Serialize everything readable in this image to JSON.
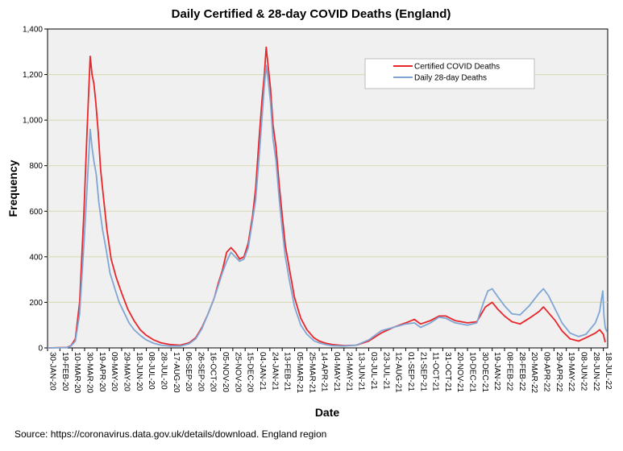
{
  "chart_data": {
    "type": "line",
    "title": "Daily Certified & 28-day COVID Deaths (England)",
    "xlabel": "Date",
    "ylabel": "Frequency",
    "source": "Source: https://coronavirus.data.gov.uk/details/download. England region",
    "ylim": [
      0,
      1400
    ],
    "yticks": [
      0,
      200,
      400,
      600,
      800,
      1000,
      1200,
      1400
    ],
    "ytick_labels": [
      "0",
      "200",
      "400",
      "600",
      "800",
      "1,000",
      "1,200",
      "1,400"
    ],
    "x_start": "30-JAN-20",
    "x_end": "25-JUL-22",
    "x_tick_labels": [
      "30-JAN-20",
      "19-FEB-20",
      "10-MAR-20",
      "30-MAR-20",
      "19-APR-20",
      "09-MAY-20",
      "29-MAY-20",
      "18-JUN-20",
      "08-JUL-20",
      "28-JUL-20",
      "17-AUG-20",
      "06-SEP-20",
      "26-SEP-20",
      "16-OCT-20",
      "05-NOV-20",
      "25-NOV-20",
      "15-DEC-20",
      "04-JAN-21",
      "24-JAN-21",
      "13-FEB-21",
      "05-MAR-21",
      "25-MAR-21",
      "14-APR-21",
      "04-MAY-21",
      "24-MAY-21",
      "13-JUN-21",
      "03-JUL-21",
      "23-JUL-21",
      "12-AUG-21",
      "01-SEP-21",
      "21-SEP-21",
      "11-OCT-21",
      "31-OCT-21",
      "20-NOV-21",
      "10-DEC-21",
      "30-DEC-21",
      "19-JAN-22",
      "08-FEB-22",
      "28-FEB-22",
      "20-MAR-22",
      "09-APR-22",
      "29-APR-22",
      "19-MAY-22",
      "08-JUN-22",
      "28-JUN-22",
      "18-JUL-22"
    ],
    "grid": "horizontal",
    "legend_position": "top-right",
    "series": [
      {
        "name": "Certified COVID Deaths",
        "color": "#e8262b",
        "points": [
          [
            "30-JAN-20",
            0
          ],
          [
            "01-MAR-20",
            2
          ],
          [
            "08-MAR-20",
            10
          ],
          [
            "15-MAR-20",
            40
          ],
          [
            "22-MAR-20",
            200
          ],
          [
            "29-MAR-20",
            600
          ],
          [
            "03-APR-20",
            950
          ],
          [
            "08-APR-20",
            1280
          ],
          [
            "11-APR-20",
            1200
          ],
          [
            "14-APR-20",
            1160
          ],
          [
            "17-APR-20",
            1080
          ],
          [
            "21-APR-20",
            950
          ],
          [
            "25-APR-20",
            780
          ],
          [
            "30-APR-20",
            650
          ],
          [
            "05-MAY-20",
            520
          ],
          [
            "12-MAY-20",
            390
          ],
          [
            "20-MAY-20",
            310
          ],
          [
            "29-MAY-20",
            240
          ],
          [
            "08-JUN-20",
            170
          ],
          [
            "18-JUN-20",
            120
          ],
          [
            "28-JUN-20",
            80
          ],
          [
            "08-JUL-20",
            55
          ],
          [
            "20-JUL-20",
            35
          ],
          [
            "01-AUG-20",
            22
          ],
          [
            "15-AUG-20",
            15
          ],
          [
            "01-SEP-20",
            12
          ],
          [
            "15-SEP-20",
            22
          ],
          [
            "26-SEP-20",
            45
          ],
          [
            "06-OCT-20",
            90
          ],
          [
            "16-OCT-20",
            150
          ],
          [
            "26-OCT-20",
            220
          ],
          [
            "01-NOV-20",
            280
          ],
          [
            "08-NOV-20",
            340
          ],
          [
            "15-NOV-20",
            420
          ],
          [
            "22-NOV-20",
            440
          ],
          [
            "29-NOV-20",
            420
          ],
          [
            "06-DEC-20",
            390
          ],
          [
            "13-DEC-20",
            400
          ],
          [
            "20-DEC-20",
            460
          ],
          [
            "27-DEC-20",
            580
          ],
          [
            "01-JAN-21",
            700
          ],
          [
            "06-JAN-21",
            900
          ],
          [
            "11-JAN-21",
            1080
          ],
          [
            "15-JAN-21",
            1200
          ],
          [
            "18-JAN-21",
            1320
          ],
          [
            "21-JAN-21",
            1240
          ],
          [
            "25-JAN-21",
            1140
          ],
          [
            "29-JAN-21",
            980
          ],
          [
            "03-FEB-21",
            880
          ],
          [
            "08-FEB-21",
            720
          ],
          [
            "13-FEB-21",
            580
          ],
          [
            "18-FEB-21",
            450
          ],
          [
            "25-FEB-21",
            340
          ],
          [
            "05-MAR-21",
            220
          ],
          [
            "15-MAR-21",
            130
          ],
          [
            "25-MAR-21",
            80
          ],
          [
            "05-APR-21",
            45
          ],
          [
            "14-APR-21",
            30
          ],
          [
            "25-APR-21",
            20
          ],
          [
            "05-MAY-21",
            15
          ],
          [
            "24-MAY-21",
            10
          ],
          [
            "13-JUN-21",
            12
          ],
          [
            "03-JUL-21",
            30
          ],
          [
            "23-JUL-21",
            65
          ],
          [
            "12-AUG-21",
            90
          ],
          [
            "01-SEP-21",
            110
          ],
          [
            "15-SEP-21",
            125
          ],
          [
            "25-SEP-21",
            105
          ],
          [
            "11-OCT-21",
            120
          ],
          [
            "25-OCT-21",
            140
          ],
          [
            "05-NOV-21",
            140
          ],
          [
            "20-NOV-21",
            120
          ],
          [
            "10-DEC-21",
            110
          ],
          [
            "25-DEC-21",
            115
          ],
          [
            "08-JAN-22",
            180
          ],
          [
            "19-JAN-22",
            200
          ],
          [
            "28-JAN-22",
            170
          ],
          [
            "08-FEB-22",
            140
          ],
          [
            "20-FEB-22",
            115
          ],
          [
            "05-MAR-22",
            105
          ],
          [
            "20-MAR-22",
            130
          ],
          [
            "05-APR-22",
            160
          ],
          [
            "12-APR-22",
            180
          ],
          [
            "20-APR-22",
            155
          ],
          [
            "01-MAY-22",
            120
          ],
          [
            "12-MAY-22",
            75
          ],
          [
            "25-MAY-22",
            40
          ],
          [
            "08-JUN-22",
            30
          ],
          [
            "20-JUN-22",
            45
          ],
          [
            "05-JUL-22",
            65
          ],
          [
            "12-JUL-22",
            80
          ],
          [
            "18-JUL-22",
            60
          ],
          [
            "21-JUL-22",
            25
          ]
        ]
      },
      {
        "name": "Daily 28-day Deaths",
        "color": "#7fa6d4",
        "points": [
          [
            "30-JAN-20",
            0
          ],
          [
            "01-MAR-20",
            1
          ],
          [
            "08-MAR-20",
            8
          ],
          [
            "15-MAR-20",
            30
          ],
          [
            "22-MAR-20",
            150
          ],
          [
            "29-MAR-20",
            460
          ],
          [
            "03-APR-20",
            700
          ],
          [
            "08-APR-20",
            960
          ],
          [
            "11-APR-20",
            880
          ],
          [
            "14-APR-20",
            820
          ],
          [
            "18-APR-20",
            760
          ],
          [
            "22-APR-20",
            640
          ],
          [
            "28-APR-20",
            520
          ],
          [
            "04-MAY-20",
            430
          ],
          [
            "10-MAY-20",
            330
          ],
          [
            "18-MAY-20",
            260
          ],
          [
            "25-MAY-20",
            200
          ],
          [
            "01-JUN-20",
            160
          ],
          [
            "10-JUN-20",
            110
          ],
          [
            "18-JUN-20",
            80
          ],
          [
            "28-JUN-20",
            55
          ],
          [
            "08-JUL-20",
            35
          ],
          [
            "20-JUL-20",
            20
          ],
          [
            "01-AUG-20",
            12
          ],
          [
            "15-AUG-20",
            8
          ],
          [
            "01-SEP-20",
            8
          ],
          [
            "15-SEP-20",
            18
          ],
          [
            "26-SEP-20",
            40
          ],
          [
            "06-OCT-20",
            85
          ],
          [
            "16-OCT-20",
            150
          ],
          [
            "26-OCT-20",
            220
          ],
          [
            "01-NOV-20",
            270
          ],
          [
            "08-NOV-20",
            330
          ],
          [
            "15-NOV-20",
            380
          ],
          [
            "22-NOV-20",
            420
          ],
          [
            "29-NOV-20",
            400
          ],
          [
            "06-DEC-20",
            380
          ],
          [
            "13-DEC-20",
            390
          ],
          [
            "20-DEC-20",
            440
          ],
          [
            "27-DEC-20",
            560
          ],
          [
            "01-JAN-21",
            650
          ],
          [
            "06-JAN-21",
            820
          ],
          [
            "11-JAN-21",
            1000
          ],
          [
            "15-JAN-21",
            1150
          ],
          [
            "18-JAN-21",
            1240
          ],
          [
            "21-JAN-21",
            1180
          ],
          [
            "25-JAN-21",
            1080
          ],
          [
            "29-JAN-21",
            920
          ],
          [
            "03-FEB-21",
            820
          ],
          [
            "08-FEB-21",
            660
          ],
          [
            "13-FEB-21",
            520
          ],
          [
            "18-FEB-21",
            400
          ],
          [
            "25-FEB-21",
            290
          ],
          [
            "05-MAR-21",
            180
          ],
          [
            "15-MAR-21",
            100
          ],
          [
            "25-MAR-21",
            60
          ],
          [
            "05-APR-21",
            32
          ],
          [
            "14-APR-21",
            22
          ],
          [
            "25-APR-21",
            14
          ],
          [
            "05-MAY-21",
            10
          ],
          [
            "24-MAY-21",
            8
          ],
          [
            "13-JUN-21",
            12
          ],
          [
            "03-JUL-21",
            35
          ],
          [
            "23-JUL-21",
            75
          ],
          [
            "12-AUG-21",
            90
          ],
          [
            "01-SEP-21",
            105
          ],
          [
            "15-SEP-21",
            110
          ],
          [
            "25-SEP-21",
            90
          ],
          [
            "11-OCT-21",
            110
          ],
          [
            "25-OCT-21",
            135
          ],
          [
            "05-NOV-21",
            130
          ],
          [
            "20-NOV-21",
            110
          ],
          [
            "10-DEC-21",
            100
          ],
          [
            "25-DEC-21",
            110
          ],
          [
            "05-JAN-22",
            200
          ],
          [
            "12-JAN-22",
            250
          ],
          [
            "19-JAN-22",
            260
          ],
          [
            "28-JAN-22",
            225
          ],
          [
            "08-FEB-22",
            185
          ],
          [
            "20-FEB-22",
            150
          ],
          [
            "05-MAR-22",
            145
          ],
          [
            "20-MAR-22",
            185
          ],
          [
            "05-APR-22",
            240
          ],
          [
            "12-APR-22",
            260
          ],
          [
            "20-APR-22",
            230
          ],
          [
            "01-MAY-22",
            170
          ],
          [
            "12-MAY-22",
            110
          ],
          [
            "25-MAY-22",
            65
          ],
          [
            "08-JUN-22",
            50
          ],
          [
            "20-JUN-22",
            60
          ],
          [
            "05-JUL-22",
            110
          ],
          [
            "12-JUL-22",
            160
          ],
          [
            "17-JUL-22",
            250
          ],
          [
            "19-JUL-22",
            140
          ],
          [
            "21-JUL-22",
            90
          ],
          [
            "24-JUL-22",
            70
          ]
        ]
      }
    ]
  }
}
